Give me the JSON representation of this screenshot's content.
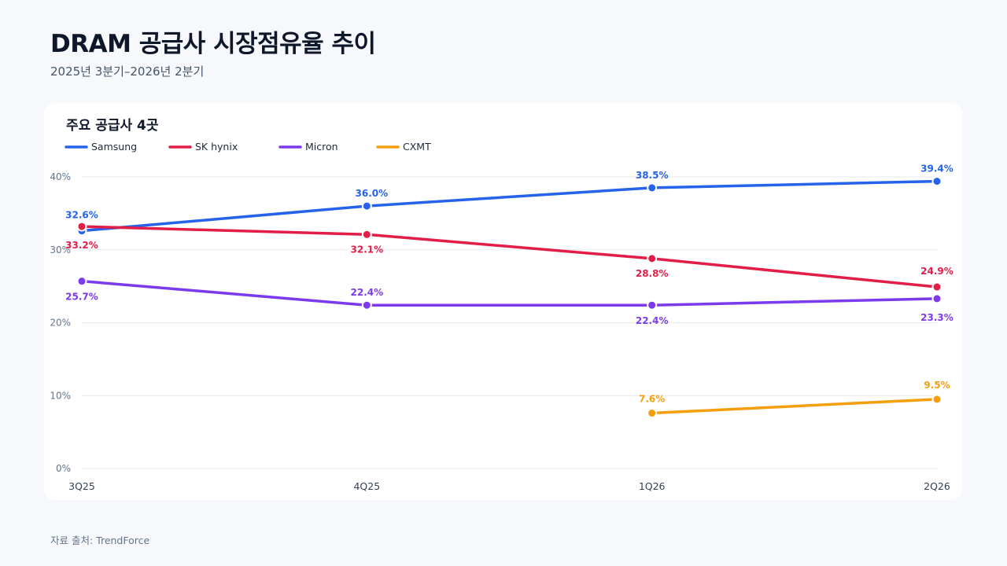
{
  "header": {
    "title": "DRAM 공급사 시장점유율 추이",
    "subtitle": "2025년 3분기–2026년 2분기"
  },
  "footer": {
    "source": "자료 출처: TrendForce"
  },
  "chart_data": {
    "type": "line",
    "title": "주요 공급사 4곳",
    "categories": [
      "3Q25",
      "4Q25",
      "1Q26",
      "2Q26"
    ],
    "yticks": [
      "0%",
      "10%",
      "20%",
      "30%",
      "40%"
    ],
    "ylim": [
      0,
      40
    ],
    "grid": true,
    "legend_position": "top-left",
    "series": [
      {
        "name": "Samsung",
        "color": "#2563eb",
        "values": [
          32.6,
          36.0,
          38.5,
          39.4
        ],
        "labels": [
          "32.6%",
          "36.0%",
          "38.5%",
          "39.4%"
        ]
      },
      {
        "name": "SK hynix",
        "color": "#e11d48",
        "values": [
          33.2,
          32.1,
          28.8,
          24.9
        ],
        "labels": [
          "33.2%",
          "32.1%",
          "28.8%",
          "24.9%"
        ]
      },
      {
        "name": "Micron",
        "color": "#7c3aed",
        "values": [
          25.7,
          22.4,
          22.4,
          23.3
        ],
        "labels": [
          "25.7%",
          "22.4%",
          "22.4%",
          "23.3%"
        ]
      },
      {
        "name": "CXMT",
        "color": "#f59e0b",
        "values": [
          null,
          null,
          7.6,
          9.5
        ],
        "labels": [
          "",
          "",
          "7.6%",
          "9.5%"
        ]
      }
    ]
  }
}
